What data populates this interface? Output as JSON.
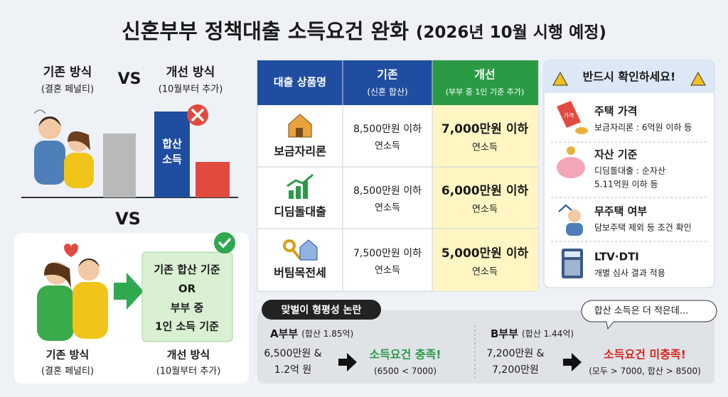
{
  "title": "신혼부부 정책대출 소득요건 완화",
  "title_note": "(2026년 10월 시행 예정)",
  "comparison": {
    "before_label": "기존 방식",
    "before_sub": "(결혼 페널티)",
    "vs": "VS",
    "after_label": "개선 방식",
    "after_sub": "(10월부터 추가)",
    "bar_label": [
      "합산",
      "소득"
    ]
  },
  "divider_vs": "VS",
  "improved": {
    "box": [
      "기존 합산 기준",
      "OR",
      "부부 중",
      "1인 소득 기준"
    ],
    "before_label": "기존 방식",
    "before_sub": "(결혼 페널티)",
    "after_label": "개선 방식",
    "after_sub": "(10월부터 추가)"
  },
  "table": {
    "header": [
      [
        "대출 상품명"
      ],
      [
        "기존",
        "(신혼 합산)"
      ],
      [
        "개선",
        "(부부 중 1인 기준 추가)"
      ]
    ],
    "rows": [
      {
        "name": "보금자리론",
        "before": [
          "8,500만원 이하",
          "연소득"
        ],
        "after": [
          "7,000만원 이하",
          "연소득"
        ]
      },
      {
        "name": "디딤돌대출",
        "before": [
          "8,500만원 이하",
          "연소득"
        ],
        "after": [
          "6,000만원 이하",
          "연소득"
        ]
      },
      {
        "name": "버팀목전세",
        "before": [
          "7,500만원 이하",
          "연소득"
        ],
        "after": [
          "5,000만원 이하",
          "연소득"
        ]
      }
    ]
  },
  "checklist": {
    "title": "반드시 확인하세요!",
    "items": [
      {
        "title": "주택 가격",
        "desc": [
          "보금자리론 : 6억원 이하 등"
        ],
        "icon_text": "가격"
      },
      {
        "title": "자산 기준",
        "desc": [
          "디딤돌대출 : 순자산",
          "5.11억원 이하 등"
        ]
      },
      {
        "title": "무주택 여부",
        "desc": [
          "담보주택 제외 등 조건 확인"
        ]
      },
      {
        "title": "LTV·DTI",
        "desc": [
          "개별 심사 결과 적용"
        ]
      }
    ]
  },
  "debate": {
    "tag": "맞벌이 형평성 논란",
    "bubble": "합산 소득은 더 적은데...",
    "cases": [
      {
        "name": "A부부",
        "total": "(합산 1.85억)",
        "income": [
          "6,500만원 &",
          "1.2억 원"
        ],
        "result": "소득요건 충족!",
        "note": "(6500 < 7000)"
      },
      {
        "name": "B부부",
        "total": "(합산 1.44억)",
        "income": [
          "7,200만원 &",
          "7,200만원"
        ],
        "result": "소득요건 미충족!",
        "note": "(모두 > 7000, 합산 > 8500)"
      }
    ]
  }
}
